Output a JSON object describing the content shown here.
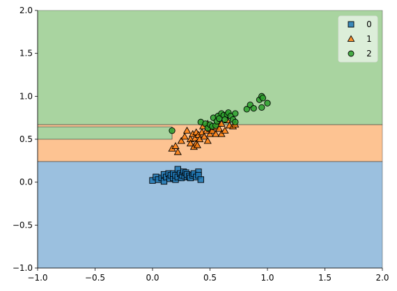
{
  "chart_data": {
    "type": "scatter",
    "title": "",
    "xlabel": "",
    "ylabel": "",
    "xlim": [
      -1.0,
      2.0
    ],
    "ylim": [
      -1.0,
      2.0
    ],
    "x_ticks": [
      -1.0,
      -0.5,
      0.0,
      0.5,
      1.0,
      1.5,
      2.0
    ],
    "y_ticks": [
      -1.0,
      -0.5,
      0.0,
      0.5,
      1.0,
      1.5,
      2.0
    ],
    "x_tick_labels": [
      "−1.0",
      "−0.5",
      "0.0",
      "0.5",
      "1.0",
      "1.5",
      "2.0"
    ],
    "y_tick_labels": [
      "−1.0",
      "−0.5",
      "0.0",
      "0.5",
      "1.0",
      "1.5",
      "2.0"
    ],
    "grid": false,
    "legend_position": "top-right",
    "decision_regions": [
      {
        "class": "0",
        "color": "#9bc0df",
        "polygon": [
          [
            -1.0,
            -1.0
          ],
          [
            2.0,
            -1.0
          ],
          [
            2.0,
            0.24
          ],
          [
            -1.0,
            0.24
          ]
        ]
      },
      {
        "class": "1",
        "color": "#fdc392",
        "polygon": [
          [
            -1.0,
            0.24
          ],
          [
            2.0,
            0.24
          ],
          [
            2.0,
            0.67
          ],
          [
            -1.0,
            0.67
          ],
          [
            -1.0,
            0.645
          ],
          [
            0.17,
            0.645
          ],
          [
            0.17,
            0.5
          ],
          [
            -1.0,
            0.5
          ]
        ]
      },
      {
        "class": "2",
        "color": "#a9d4a0",
        "polygon": [
          [
            -1.0,
            0.67
          ],
          [
            2.0,
            0.67
          ],
          [
            2.0,
            2.0
          ],
          [
            -1.0,
            2.0
          ]
        ]
      },
      {
        "class": "2",
        "color": "#a9d4a0",
        "polygon": [
          [
            -1.0,
            0.5
          ],
          [
            0.17,
            0.5
          ],
          [
            0.17,
            0.645
          ],
          [
            -1.0,
            0.645
          ]
        ]
      }
    ],
    "series": [
      {
        "name": "0",
        "marker": "square",
        "color": "#1f77b4",
        "points": [
          [
            0.0,
            0.02
          ],
          [
            0.03,
            0.06
          ],
          [
            0.05,
            0.03
          ],
          [
            0.08,
            0.05
          ],
          [
            0.1,
            0.01
          ],
          [
            0.1,
            0.09
          ],
          [
            0.12,
            0.06
          ],
          [
            0.14,
            0.1
          ],
          [
            0.15,
            0.04
          ],
          [
            0.16,
            0.08
          ],
          [
            0.18,
            0.05
          ],
          [
            0.18,
            0.1
          ],
          [
            0.2,
            0.03
          ],
          [
            0.2,
            0.08
          ],
          [
            0.22,
            0.15
          ],
          [
            0.22,
            0.06
          ],
          [
            0.24,
            0.1
          ],
          [
            0.25,
            0.05
          ],
          [
            0.26,
            0.08
          ],
          [
            0.27,
            0.12
          ],
          [
            0.28,
            0.07
          ],
          [
            0.29,
            0.11
          ],
          [
            0.3,
            0.06
          ],
          [
            0.3,
            0.09
          ],
          [
            0.32,
            0.07
          ],
          [
            0.33,
            0.05
          ],
          [
            0.35,
            0.08
          ],
          [
            0.36,
            0.1
          ],
          [
            0.38,
            0.06
          ],
          [
            0.4,
            0.12
          ],
          [
            0.4,
            0.08
          ],
          [
            0.42,
            0.03
          ]
        ]
      },
      {
        "name": "1",
        "marker": "triangle",
        "color": "#ff7f0e",
        "points": [
          [
            0.17,
            0.39
          ],
          [
            0.2,
            0.42
          ],
          [
            0.22,
            0.35
          ],
          [
            0.25,
            0.48
          ],
          [
            0.28,
            0.53
          ],
          [
            0.3,
            0.6
          ],
          [
            0.33,
            0.5
          ],
          [
            0.33,
            0.45
          ],
          [
            0.35,
            0.56
          ],
          [
            0.36,
            0.41
          ],
          [
            0.37,
            0.51
          ],
          [
            0.38,
            0.58
          ],
          [
            0.38,
            0.45
          ],
          [
            0.39,
            0.43
          ],
          [
            0.4,
            0.55
          ],
          [
            0.41,
            0.5
          ],
          [
            0.43,
            0.58
          ],
          [
            0.44,
            0.65
          ],
          [
            0.45,
            0.53
          ],
          [
            0.47,
            0.6
          ],
          [
            0.48,
            0.68
          ],
          [
            0.48,
            0.48
          ],
          [
            0.5,
            0.56
          ],
          [
            0.5,
            0.62
          ],
          [
            0.52,
            0.6
          ],
          [
            0.55,
            0.64
          ],
          [
            0.55,
            0.56
          ],
          [
            0.57,
            0.68
          ],
          [
            0.58,
            0.62
          ],
          [
            0.6,
            0.56
          ],
          [
            0.6,
            0.68
          ],
          [
            0.63,
            0.6
          ],
          [
            0.65,
            0.72
          ],
          [
            0.67,
            0.66
          ],
          [
            0.7,
            0.65
          ],
          [
            0.72,
            0.67
          ]
        ]
      },
      {
        "name": "2",
        "marker": "circle",
        "color": "#2ca02c",
        "points": [
          [
            0.17,
            0.6
          ],
          [
            0.42,
            0.7
          ],
          [
            0.46,
            0.68
          ],
          [
            0.48,
            0.63
          ],
          [
            0.5,
            0.67
          ],
          [
            0.52,
            0.65
          ],
          [
            0.53,
            0.75
          ],
          [
            0.55,
            0.66
          ],
          [
            0.56,
            0.71
          ],
          [
            0.57,
            0.77
          ],
          [
            0.58,
            0.74
          ],
          [
            0.6,
            0.8
          ],
          [
            0.62,
            0.78
          ],
          [
            0.63,
            0.73
          ],
          [
            0.65,
            0.79
          ],
          [
            0.66,
            0.81
          ],
          [
            0.68,
            0.77
          ],
          [
            0.7,
            0.73
          ],
          [
            0.72,
            0.8
          ],
          [
            0.72,
            0.7
          ],
          [
            0.82,
            0.85
          ],
          [
            0.85,
            0.9
          ],
          [
            0.88,
            0.86
          ],
          [
            0.93,
            0.96
          ],
          [
            0.95,
            1.0
          ],
          [
            0.95,
            0.87
          ],
          [
            1.0,
            0.92
          ],
          [
            0.96,
            0.98
          ]
        ]
      }
    ]
  },
  "legend": {
    "items": [
      {
        "label": "0",
        "marker": "square",
        "color": "#1f77b4"
      },
      {
        "label": "1",
        "marker": "triangle",
        "color": "#ff7f0e"
      },
      {
        "label": "2",
        "marker": "circle",
        "color": "#2ca02c"
      }
    ]
  }
}
